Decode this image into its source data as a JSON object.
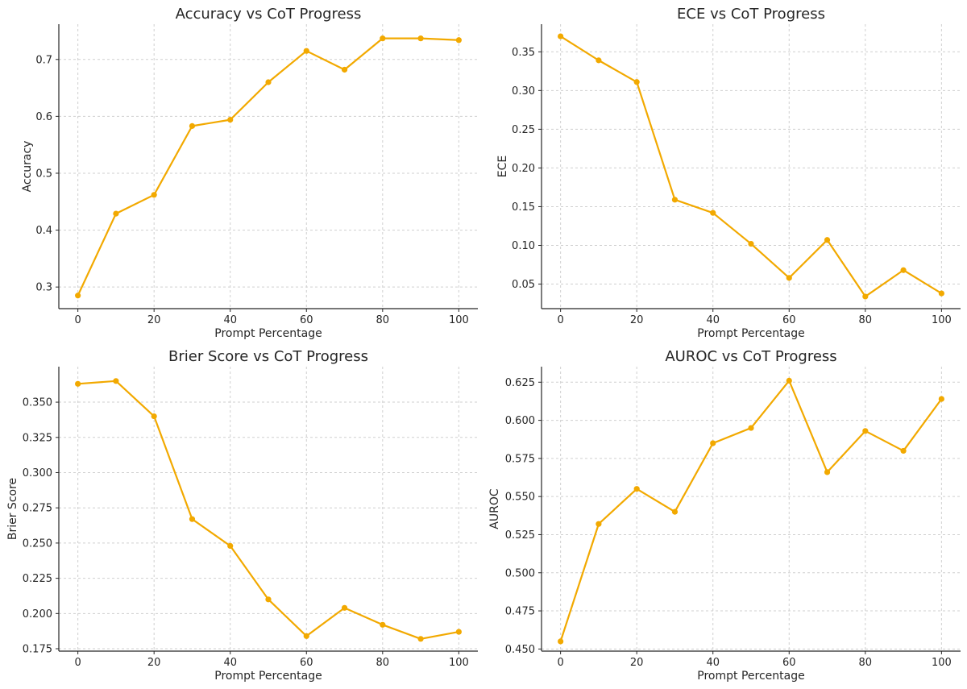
{
  "chart_data": [
    {
      "type": "line",
      "title": "Accuracy vs CoT Progress",
      "xlabel": "Prompt Percentage",
      "ylabel": "Accuracy",
      "x": [
        0,
        10,
        20,
        30,
        40,
        50,
        60,
        70,
        80,
        90,
        100
      ],
      "series": [
        {
          "name": "Accuracy",
          "values": [
            0.285,
            0.429,
            0.462,
            0.583,
            0.594,
            0.66,
            0.715,
            0.682,
            0.737,
            0.737,
            0.734
          ]
        }
      ],
      "xlim": [
        -5,
        105
      ],
      "ylim": [
        0.262,
        0.762
      ],
      "xticks": [
        "0",
        "20",
        "40",
        "60",
        "80",
        "100"
      ],
      "yticks": [
        "0.3",
        "0.4",
        "0.5",
        "0.6",
        "0.7"
      ],
      "grid": true,
      "color": "#f2a900"
    },
    {
      "type": "line",
      "title": "ECE vs CoT Progress",
      "xlabel": "Prompt Percentage",
      "ylabel": "ECE",
      "x": [
        0,
        10,
        20,
        30,
        40,
        50,
        60,
        70,
        80,
        90,
        100
      ],
      "series": [
        {
          "name": "ECE",
          "values": [
            0.37,
            0.339,
            0.311,
            0.159,
            0.142,
            0.102,
            0.058,
            0.107,
            0.034,
            0.068,
            0.038
          ]
        }
      ],
      "xlim": [
        -5,
        105
      ],
      "ylim": [
        0.0183,
        0.3857
      ],
      "xticks": [
        "0",
        "20",
        "40",
        "60",
        "80",
        "100"
      ],
      "yticks": [
        "0.05",
        "0.10",
        "0.15",
        "0.20",
        "0.25",
        "0.30",
        "0.35"
      ],
      "grid": true,
      "color": "#f2a900"
    },
    {
      "type": "line",
      "title": "Brier Score vs CoT Progress",
      "xlabel": "Prompt Percentage",
      "ylabel": "Brier Score",
      "x": [
        0,
        10,
        20,
        30,
        40,
        50,
        60,
        70,
        80,
        90,
        100
      ],
      "series": [
        {
          "name": "Brier Score",
          "values": [
            0.363,
            0.365,
            0.34,
            0.267,
            0.248,
            0.21,
            0.184,
            0.204,
            0.192,
            0.182,
            0.187
          ]
        }
      ],
      "xlim": [
        -5,
        105
      ],
      "ylim": [
        0.1733,
        0.3752
      ],
      "xticks": [
        "0",
        "20",
        "40",
        "60",
        "80",
        "100"
      ],
      "yticks": [
        "0.175",
        "0.200",
        "0.225",
        "0.250",
        "0.275",
        "0.300",
        "0.325",
        "0.350"
      ],
      "grid": true,
      "color": "#f2a900"
    },
    {
      "type": "line",
      "title": "AUROC vs CoT Progress",
      "xlabel": "Prompt Percentage",
      "ylabel": "AUROC",
      "x": [
        0,
        10,
        20,
        30,
        40,
        50,
        60,
        70,
        80,
        90,
        100
      ],
      "series": [
        {
          "name": "AUROC",
          "values": [
            0.455,
            0.532,
            0.555,
            0.54,
            0.585,
            0.595,
            0.626,
            0.566,
            0.593,
            0.58,
            0.614
          ]
        }
      ],
      "xlim": [
        -5,
        105
      ],
      "ylim": [
        0.4486,
        0.6352
      ],
      "xticks": [
        "0",
        "20",
        "40",
        "60",
        "80",
        "100"
      ],
      "yticks": [
        "0.450",
        "0.475",
        "0.500",
        "0.525",
        "0.550",
        "0.575",
        "0.600",
        "0.625"
      ],
      "grid": true,
      "color": "#f2a900"
    }
  ]
}
